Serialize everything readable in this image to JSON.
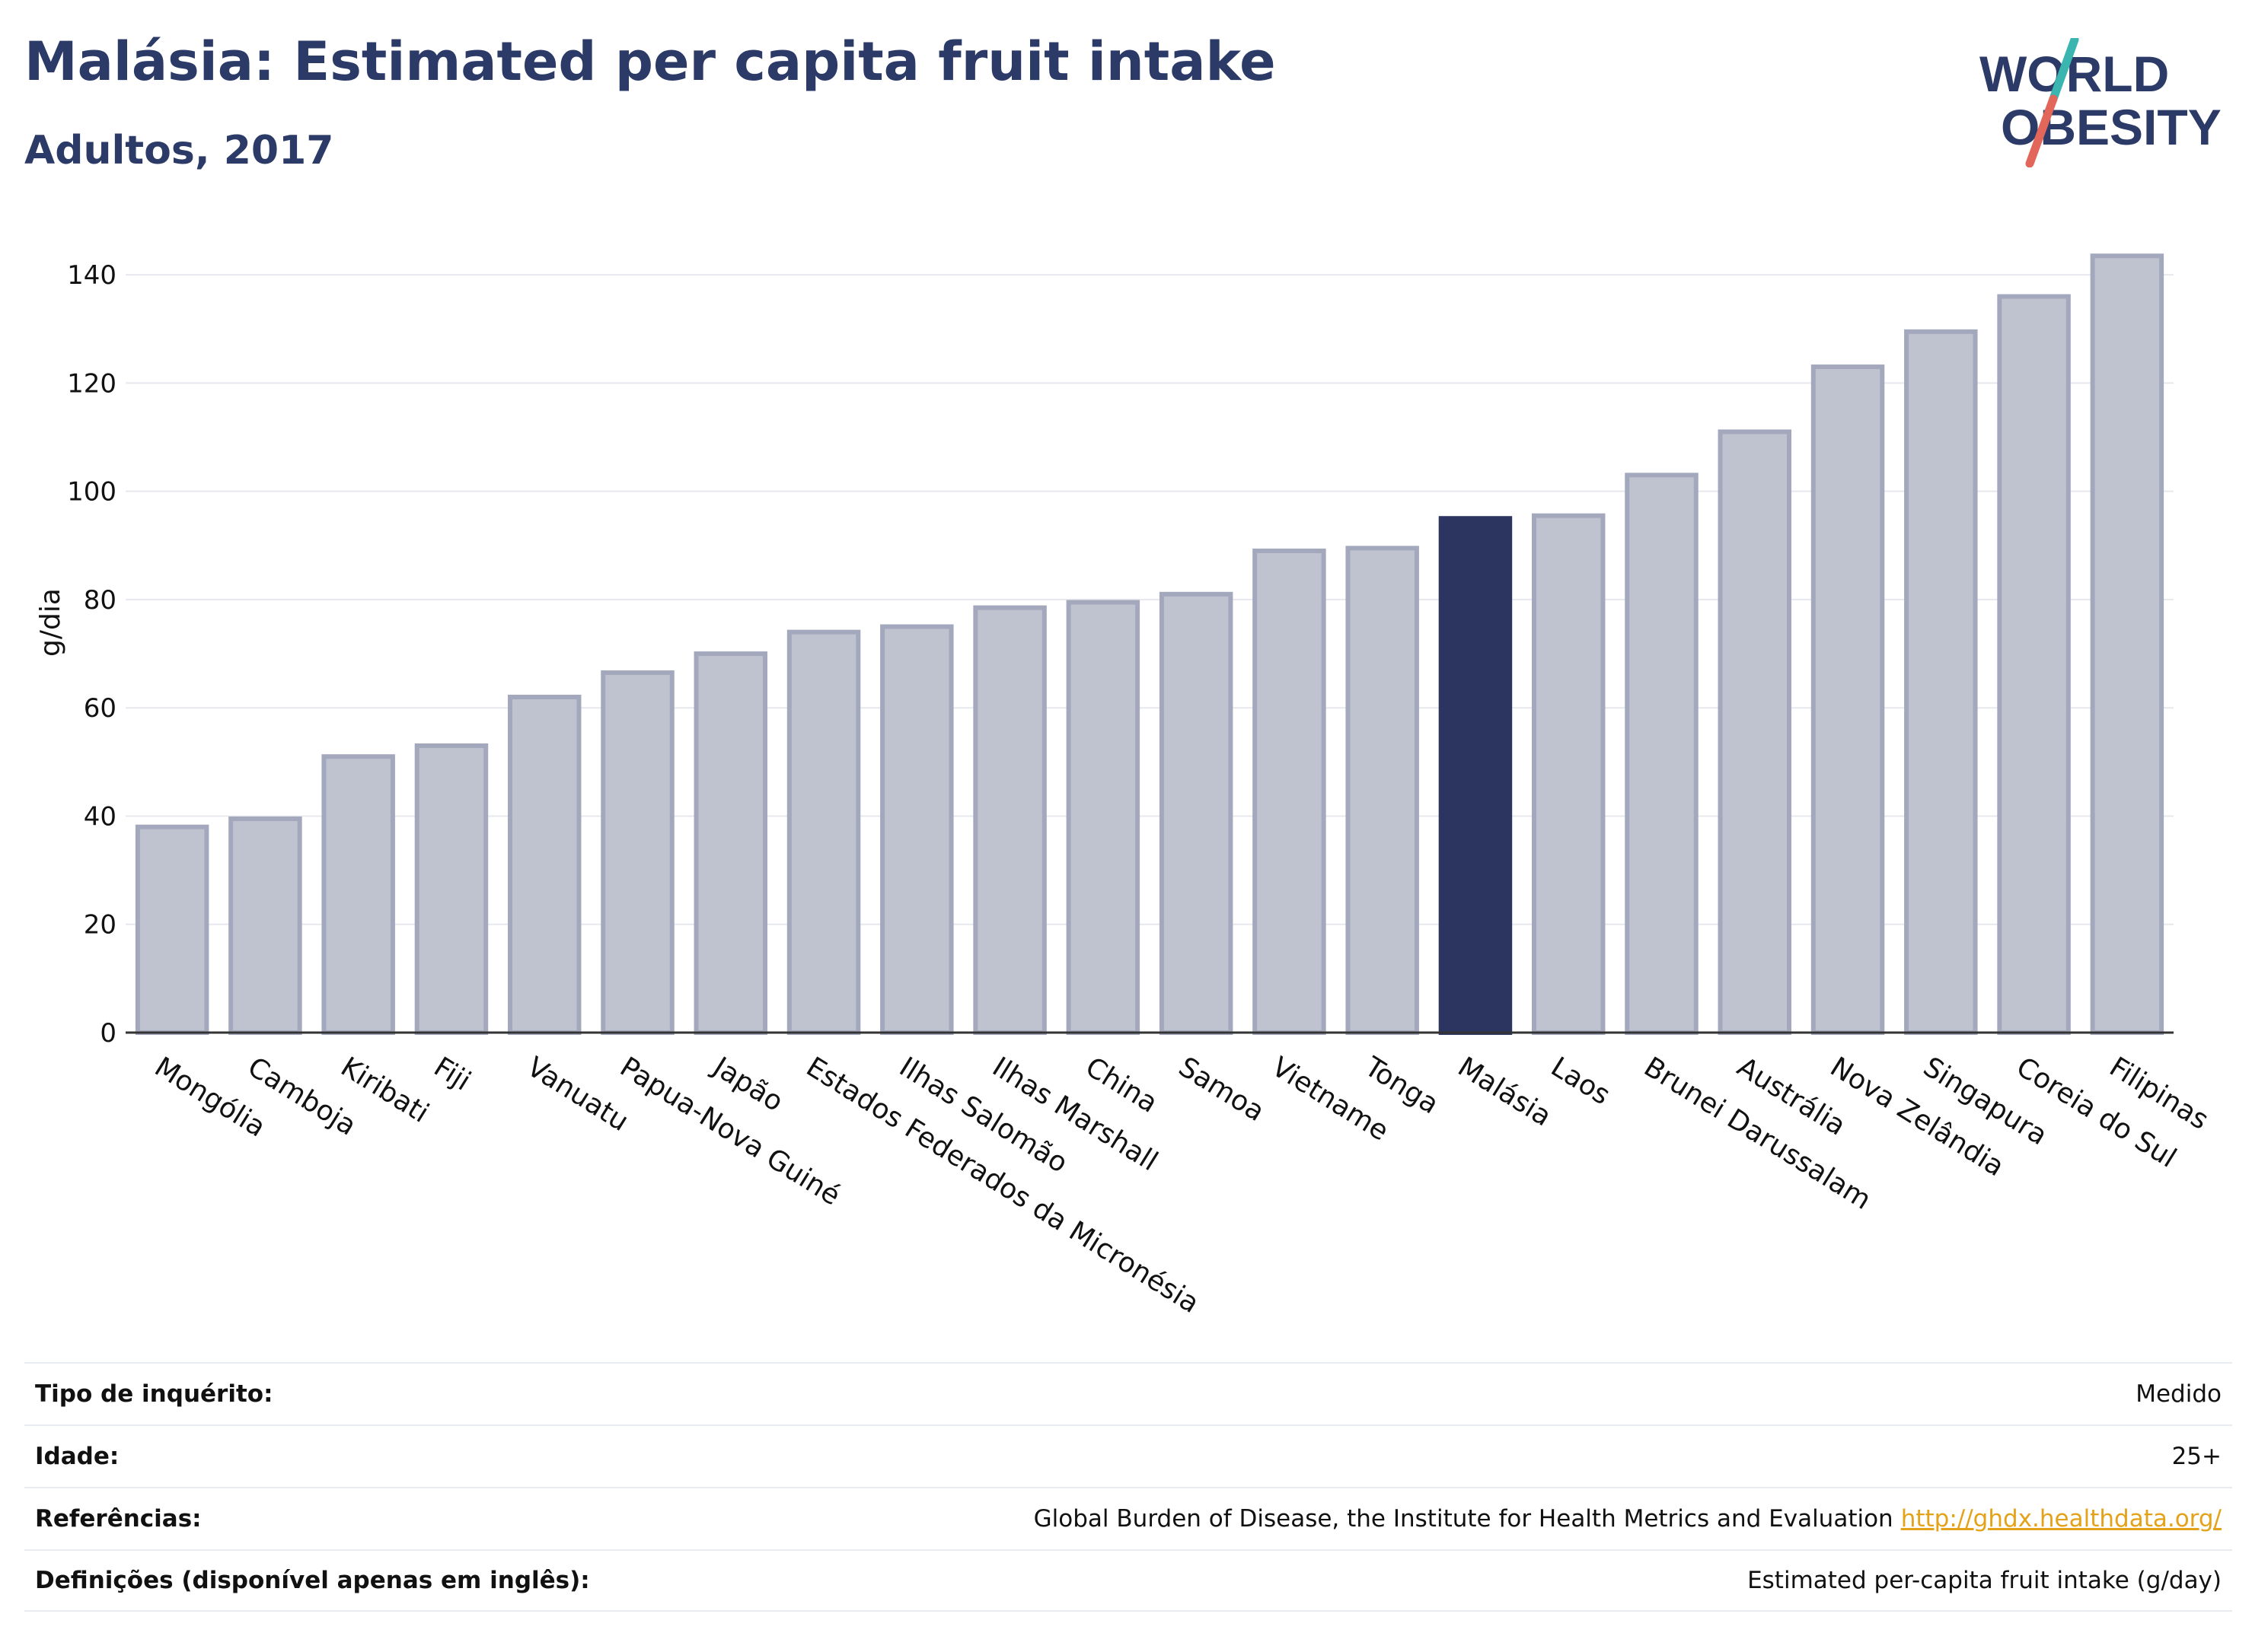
{
  "header": {
    "title": "Malásia: Estimated per capita fruit intake",
    "subtitle": "Adultos, 2017"
  },
  "logo": {
    "line1": "WORLD",
    "line2": "OBESITY",
    "accent_teal": "#3ab5b0",
    "accent_red": "#e2665a",
    "text_color": "#2b3a67"
  },
  "chart_data": {
    "type": "bar",
    "ylabel": "g/dia",
    "ylim": [
      0,
      150
    ],
    "yticks": [
      0,
      20,
      40,
      60,
      80,
      100,
      120,
      140
    ],
    "grid": true,
    "highlight": "Malásia",
    "bar_color": "#bfc3d0",
    "bar_edge_color": "#a3a8bd",
    "highlight_color": "#2b3560",
    "categories": [
      "Mongólia",
      "Camboja",
      "Kiribati",
      "Fiji",
      "Vanuatu",
      "Papua-Nova Guiné",
      "Japão",
      "Estados Federados da Micronésia",
      "Ilhas Salomão",
      "Ilhas Marshall",
      "China",
      "Samoa",
      "Vietname",
      "Tonga",
      "Malásia",
      "Laos",
      "Brunei Darussalam",
      "Austrália",
      "Nova Zelândia",
      "Singapura",
      "Coreia do Sul",
      "Filipinas"
    ],
    "values": [
      38,
      39.5,
      51,
      53,
      62,
      66.5,
      70,
      74,
      75,
      78.5,
      79.5,
      81,
      89,
      89.5,
      95,
      95.5,
      103,
      111,
      123,
      129.5,
      136,
      143.5
    ]
  },
  "info": {
    "rows": [
      {
        "label": "Tipo de inquérito:",
        "value": "Medido"
      },
      {
        "label": "Idade:",
        "value": "25+"
      },
      {
        "label": "Referências:",
        "value": "Global Burden of Disease, the Institute for Health Metrics and Evaluation",
        "link": "http://ghdx.healthdata.org/"
      },
      {
        "label": "Definições (disponível apenas em inglês):",
        "value": "Estimated per-capita fruit intake (g/day)"
      }
    ]
  }
}
